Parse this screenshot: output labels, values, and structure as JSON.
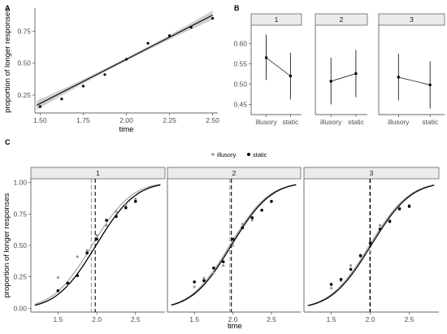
{
  "chart_data": [
    {
      "panel": "A",
      "type": "scatter",
      "xlabel": "time",
      "ylabel": "proportion of longer responses",
      "xlim": [
        1.47,
        2.53
      ],
      "ylim": [
        0.11,
        0.93
      ],
      "x_ticks": [
        "1.50",
        "1.75",
        "2.00",
        "2.25",
        "2.50"
      ],
      "x_tick_values": [
        1.5,
        1.75,
        2.0,
        2.25,
        2.5
      ],
      "y_ticks": [
        "0.25",
        "0.50",
        "0.75"
      ],
      "y_tick_values": [
        0.25,
        0.5,
        0.75
      ],
      "points": [
        {
          "x": 1.5,
          "y": 0.16
        },
        {
          "x": 1.625,
          "y": 0.22
        },
        {
          "x": 1.75,
          "y": 0.32
        },
        {
          "x": 1.875,
          "y": 0.41
        },
        {
          "x": 2.0,
          "y": 0.53
        },
        {
          "x": 2.125,
          "y": 0.655
        },
        {
          "x": 2.25,
          "y": 0.715
        },
        {
          "x": 2.375,
          "y": 0.78
        },
        {
          "x": 2.5,
          "y": 0.85
        }
      ],
      "fit_line": {
        "x": [
          1.48,
          2.5
        ],
        "y": [
          0.17,
          0.875
        ]
      },
      "ribbon_halfwidth": 0.035
    },
    {
      "panel": "B",
      "type": "scatter",
      "xlabel": "",
      "ylabel": "",
      "ylim": [
        0.425,
        0.645
      ],
      "y_ticks": [
        "0.45",
        "0.50",
        "0.55",
        "0.60"
      ],
      "y_tick_values": [
        0.45,
        0.5,
        0.55,
        0.6
      ],
      "facets": [
        "1",
        "2",
        "3"
      ],
      "categories": [
        "illusory",
        "static"
      ],
      "groups": [
        {
          "facet": "1",
          "means": [
            0.565,
            0.52
          ],
          "lower": [
            0.51,
            0.462
          ],
          "upper": [
            0.622,
            0.577
          ]
        },
        {
          "facet": "2",
          "means": [
            0.507,
            0.526
          ],
          "lower": [
            0.45,
            0.468
          ],
          "upper": [
            0.565,
            0.584
          ]
        },
        {
          "facet": "3",
          "means": [
            0.517,
            0.498
          ],
          "lower": [
            0.46,
            0.44
          ],
          "upper": [
            0.575,
            0.556
          ]
        }
      ]
    },
    {
      "panel": "C",
      "type": "line",
      "xlabel": "time",
      "ylabel": "proportion of longer responses",
      "xlim": [
        1.15,
        2.88
      ],
      "ylim": [
        -0.03,
        1.03
      ],
      "x_ticks": [
        "1.5",
        "2.0",
        "2.5"
      ],
      "x_tick_values": [
        1.5,
        2.0,
        2.5
      ],
      "y_ticks": [
        "0.00",
        "0.25",
        "0.50",
        "0.75",
        "1.00"
      ],
      "y_tick_values": [
        0.0,
        0.25,
        0.5,
        0.75,
        1.0
      ],
      "legend": {
        "position": "top",
        "entries": [
          "illusory",
          "static"
        ]
      },
      "colors": {
        "illusory": "#999999",
        "static": "#000000"
      },
      "facets": [
        {
          "label": "1",
          "pse": {
            "illusory": 1.93,
            "static": 1.98
          },
          "illusory_curve": {
            "mu": 1.94,
            "sigma": 0.4
          },
          "static_curve": {
            "mu": 1.99,
            "sigma": 0.4
          },
          "illusory_points": {
            "x": [
              1.5,
              1.625,
              1.75,
              1.875,
              2.0,
              2.125,
              2.25,
              2.375,
              2.5
            ],
            "y": [
              0.245,
              0.19,
              0.41,
              0.46,
              0.58,
              0.66,
              0.77,
              0.82,
              0.87
            ]
          },
          "static_points": {
            "x": [
              1.5,
              1.625,
              1.75,
              1.875,
              2.0,
              2.125,
              2.25,
              2.375,
              2.5
            ],
            "y": [
              0.14,
              0.2,
              0.26,
              0.44,
              0.55,
              0.7,
              0.73,
              0.8,
              0.85
            ]
          }
        },
        {
          "label": "2",
          "pse": {
            "illusory": 1.96,
            "static": 1.98
          },
          "illusory_curve": {
            "mu": 1.96,
            "sigma": 0.4
          },
          "static_curve": {
            "mu": 1.98,
            "sigma": 0.4
          },
          "illusory_points": {
            "x": [
              1.5,
              1.625,
              1.75,
              1.875,
              2.0,
              2.125,
              2.25,
              2.375,
              2.5
            ],
            "y": [
              0.17,
              0.24,
              0.28,
              0.34,
              0.5,
              0.67,
              0.7,
              0.78,
              0.85
            ]
          },
          "static_points": {
            "x": [
              1.5,
              1.625,
              1.75,
              1.875,
              2.0,
              2.125,
              2.25,
              2.375,
              2.5
            ],
            "y": [
              0.21,
              0.22,
              0.32,
              0.37,
              0.55,
              0.64,
              0.72,
              0.78,
              0.85
            ]
          }
        },
        {
          "label": "3",
          "pse": {
            "illusory": 1.99,
            "static": 2.0
          },
          "illusory_curve": {
            "mu": 1.99,
            "sigma": 0.4
          },
          "static_curve": {
            "mu": 2.01,
            "sigma": 0.4
          },
          "illusory_points": {
            "x": [
              1.5,
              1.625,
              1.75,
              1.875,
              2.0,
              2.125,
              2.25,
              2.375,
              2.5
            ],
            "y": [
              0.16,
              0.22,
              0.34,
              0.41,
              0.45,
              0.66,
              0.7,
              0.8,
              0.82
            ]
          },
          "static_points": {
            "x": [
              1.5,
              1.625,
              1.75,
              1.875,
              2.0,
              2.125,
              2.25,
              2.375,
              2.5
            ],
            "y": [
              0.19,
              0.23,
              0.31,
              0.42,
              0.52,
              0.63,
              0.69,
              0.79,
              0.81
            ]
          }
        }
      ]
    }
  ]
}
